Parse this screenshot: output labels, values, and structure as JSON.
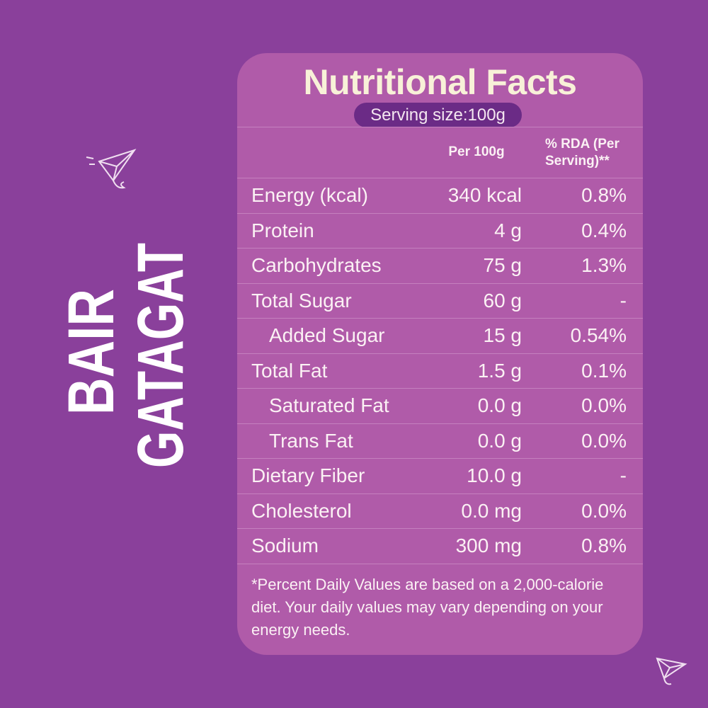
{
  "brand": {
    "lines": [
      "BAIR",
      "GATAGAT"
    ]
  },
  "header": {
    "title": "Nutritional Facts",
    "serving_size": "Serving size:100g"
  },
  "table": {
    "columns": [
      "Per 100g",
      "% RDA (Per Serving)**"
    ],
    "rows": [
      {
        "label": "Energy (kcal)",
        "per_100g": "340 kcal",
        "rda": "0.8%"
      },
      {
        "label": "Protein",
        "per_100g": "4 g",
        "rda": "0.4%"
      },
      {
        "label": "Carbohydrates",
        "per_100g": "75 g",
        "rda": "1.3%"
      },
      {
        "label": "Total Sugar",
        "per_100g": "60 g",
        "rda": "-",
        "sub_rows": [
          {
            "label": "Added Sugar",
            "per_100g": "15 g",
            "rda": "0.54%"
          }
        ]
      },
      {
        "label": "Total Fat",
        "per_100g": "1.5 g",
        "rda": "0.1%",
        "sub_rows": [
          {
            "label": "Saturated Fat",
            "per_100g": "0.0 g",
            "rda": "0.0%"
          },
          {
            "label": "Trans Fat",
            "per_100g": "0.0 g",
            "rda": "0.0%"
          }
        ]
      },
      {
        "label": "Dietary Fiber",
        "per_100g": "10.0 g",
        "rda": "-"
      },
      {
        "label": "Cholesterol",
        "per_100g": "0.0 mg",
        "rda": "0.0%"
      },
      {
        "label": "Sodium",
        "per_100g": "300 mg",
        "rda": "0.8%"
      }
    ]
  },
  "footnote": "*Percent Daily Values are based on a 2,000-calorie diet. Your daily values may vary depending on your energy needs."
}
